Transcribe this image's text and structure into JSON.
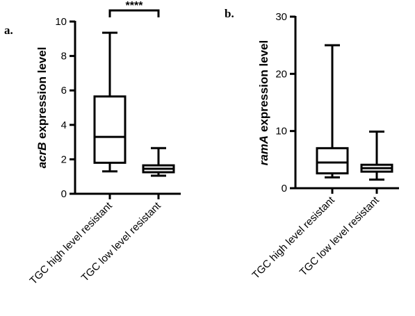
{
  "chart_data": [
    {
      "type": "box",
      "panel_label": "a.",
      "ylabel_italic": "acrB",
      "ylabel_rest": " expression level",
      "ylim": [
        0,
        10
      ],
      "yticks": [
        0,
        2,
        4,
        6,
        8,
        10
      ],
      "categories": [
        "TGC high level resistant",
        "TGC low level resistant"
      ],
      "boxes": [
        {
          "min": 1.3,
          "q1": 1.8,
          "median": 3.3,
          "q3": 5.65,
          "max": 9.35
        },
        {
          "min": 1.05,
          "q1": 1.25,
          "median": 1.45,
          "q3": 1.65,
          "max": 2.65
        }
      ],
      "significance": {
        "label": "****",
        "from": 0,
        "to": 1
      }
    },
    {
      "type": "box",
      "panel_label": "b.",
      "ylabel_italic": "ramA",
      "ylabel_rest": " expression level",
      "ylim": [
        0,
        30
      ],
      "yticks": [
        0,
        10,
        20,
        30
      ],
      "categories": [
        "TGC high level resistant",
        "TGC low level resistant"
      ],
      "boxes": [
        {
          "min": 1.9,
          "q1": 2.6,
          "median": 4.5,
          "q3": 7.0,
          "max": 25.0
        },
        {
          "min": 1.5,
          "q1": 2.9,
          "median": 3.5,
          "q3": 4.1,
          "max": 9.9
        }
      ]
    }
  ]
}
